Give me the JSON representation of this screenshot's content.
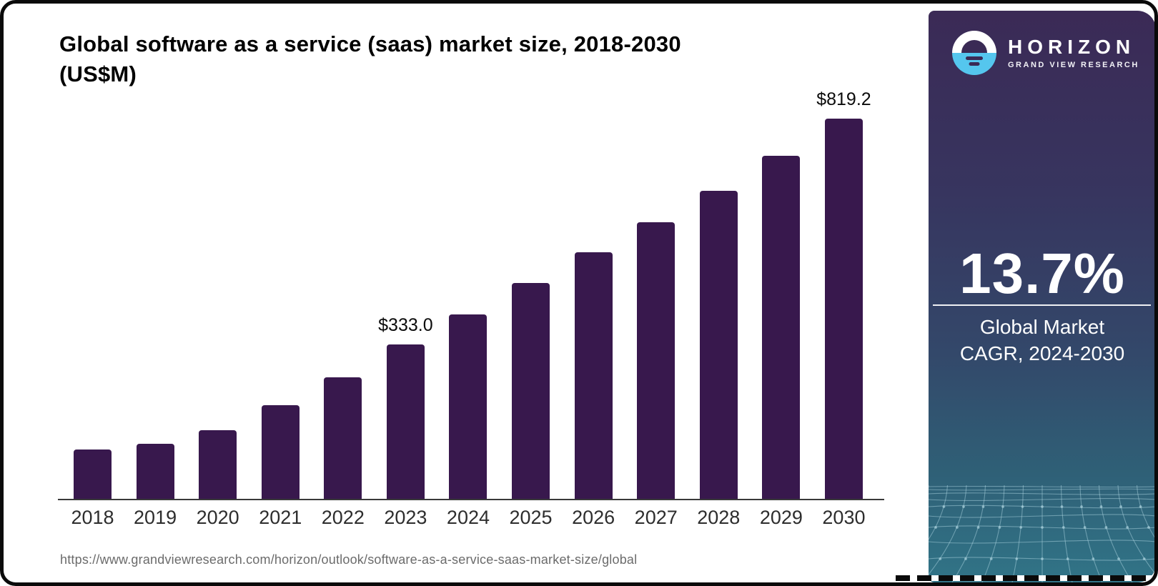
{
  "page": {
    "title_line1": "Global software as a service (saas) market size, 2018-2030",
    "title_line2": "(US$M)",
    "source_url": "https://www.grandviewresearch.com/horizon/outlook/software-as-a-service-saas-market-size/global"
  },
  "chart_data": {
    "type": "bar",
    "title": "Global software as a service (saas) market size, 2018-2030 (US$M)",
    "unit": "US$M",
    "categories": [
      "2018",
      "2019",
      "2020",
      "2021",
      "2022",
      "2023",
      "2024",
      "2025",
      "2026",
      "2027",
      "2028",
      "2029",
      "2030"
    ],
    "values": [
      106,
      119,
      148,
      202,
      262,
      333.0,
      398,
      465,
      531,
      596,
      664,
      739,
      819.2
    ],
    "value_labels": [
      null,
      null,
      null,
      null,
      null,
      "$333.0",
      null,
      null,
      null,
      null,
      null,
      null,
      "$819.2"
    ],
    "xlabel": "",
    "ylabel": "",
    "ylim": [
      0,
      860
    ],
    "grid": false,
    "legend": "none",
    "bar_color": "#38184d"
  },
  "sidebar": {
    "logo": {
      "icon": "horizon-sun-logo",
      "brand": "HORIZON",
      "tagline": "GRAND VIEW RESEARCH"
    },
    "stat": {
      "value": "13.7%",
      "caption_line1": "Global Market",
      "caption_line2": "CAGR, 2024-2030"
    },
    "colors": {
      "gradient_top": "#3b2a56",
      "gradient_bottom": "#317487",
      "logo_blue": "#55c6ee",
      "logo_purple": "#3a2a55"
    }
  },
  "colors": {
    "bar": "#38184d",
    "axis": "#3a3a3a",
    "title": "#000000",
    "url": "#6b6b6b"
  }
}
